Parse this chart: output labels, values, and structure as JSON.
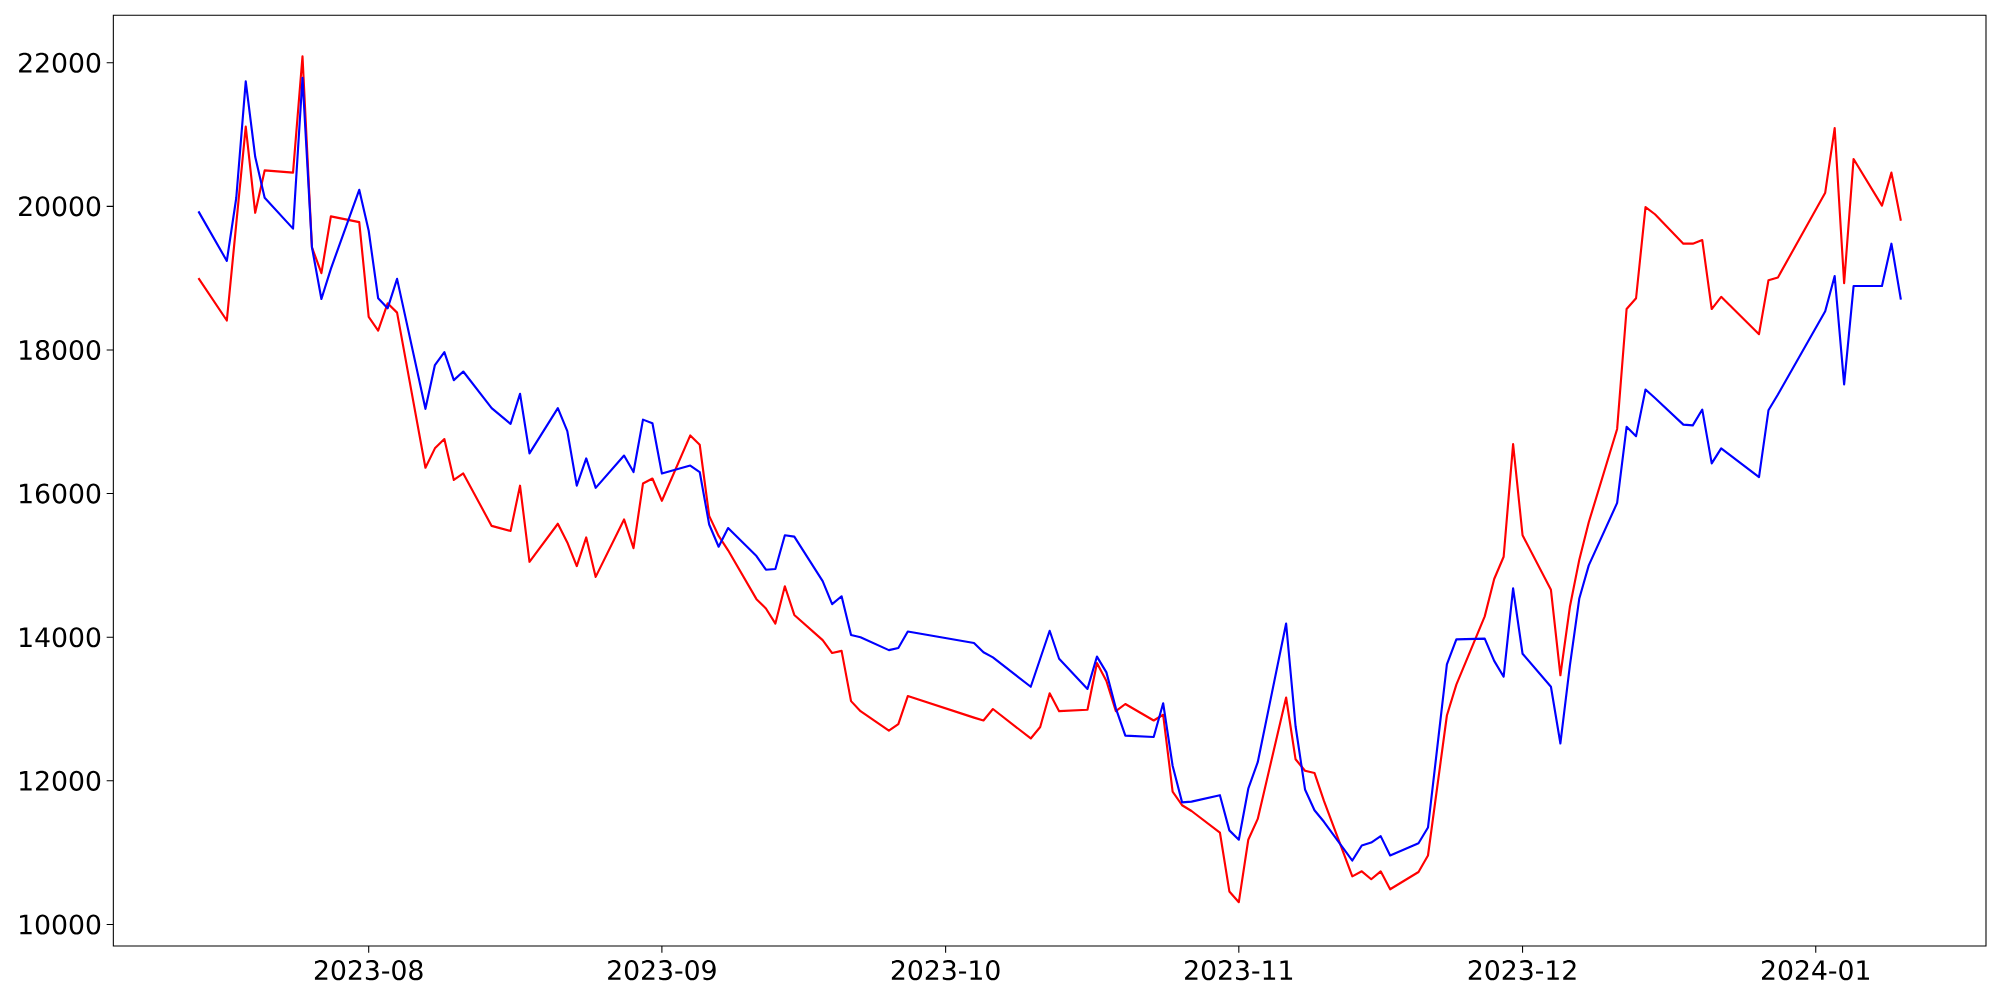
{
  "chart_data": {
    "type": "line",
    "x": [
      "2023-07-14",
      "2023-07-17",
      "2023-07-18",
      "2023-07-19",
      "2023-07-20",
      "2023-07-21",
      "2023-07-24",
      "2023-07-25",
      "2023-07-26",
      "2023-07-27",
      "2023-07-28",
      "2023-07-31",
      "2023-08-01",
      "2023-08-02",
      "2023-08-03",
      "2023-08-04",
      "2023-08-07",
      "2023-08-08",
      "2023-08-09",
      "2023-08-10",
      "2023-08-11",
      "2023-08-14",
      "2023-08-16",
      "2023-08-17",
      "2023-08-18",
      "2023-08-21",
      "2023-08-22",
      "2023-08-23",
      "2023-08-24",
      "2023-08-25",
      "2023-08-28",
      "2023-08-29",
      "2023-08-30",
      "2023-08-31",
      "2023-09-01",
      "2023-09-04",
      "2023-09-05",
      "2023-09-06",
      "2023-09-07",
      "2023-09-08",
      "2023-09-11",
      "2023-09-12",
      "2023-09-13",
      "2023-09-14",
      "2023-09-15",
      "2023-09-18",
      "2023-09-19",
      "2023-09-20",
      "2023-09-21",
      "2023-09-22",
      "2023-09-25",
      "2023-09-26",
      "2023-09-27",
      "2023-10-04",
      "2023-10-05",
      "2023-10-06",
      "2023-10-10",
      "2023-10-11",
      "2023-10-12",
      "2023-10-13",
      "2023-10-16",
      "2023-10-17",
      "2023-10-18",
      "2023-10-19",
      "2023-10-20",
      "2023-10-23",
      "2023-10-24",
      "2023-10-25",
      "2023-10-26",
      "2023-10-27",
      "2023-10-30",
      "2023-10-31",
      "2023-11-01",
      "2023-11-02",
      "2023-11-03",
      "2023-11-06",
      "2023-11-07",
      "2023-11-08",
      "2023-11-09",
      "2023-11-10",
      "2023-11-13",
      "2023-11-14",
      "2023-11-15",
      "2023-11-16",
      "2023-11-17",
      "2023-11-20",
      "2023-11-21",
      "2023-11-23",
      "2023-11-24",
      "2023-11-27",
      "2023-11-28",
      "2023-11-29",
      "2023-11-30",
      "2023-12-01",
      "2023-12-04",
      "2023-12-05",
      "2023-12-06",
      "2023-12-07",
      "2023-12-08",
      "2023-12-11",
      "2023-12-12",
      "2023-12-13",
      "2023-12-14",
      "2023-12-15",
      "2023-12-18",
      "2023-12-19",
      "2023-12-20",
      "2023-12-21",
      "2023-12-22",
      "2023-12-26",
      "2023-12-27",
      "2023-12-28",
      "2024-01-02",
      "2024-01-03",
      "2024-01-04",
      "2024-01-05",
      "2024-01-08",
      "2024-01-09",
      "2024-01-10"
    ],
    "series": [
      {
        "color": "#ff0000",
        "values": [
          19000,
          18410,
          19760,
          21110,
          19910,
          20500,
          20470,
          22090,
          19430,
          19070,
          19860,
          19780,
          18460,
          18270,
          18650,
          18520,
          16360,
          16630,
          16760,
          16190,
          16280,
          15550,
          15480,
          16110,
          15050,
          15580,
          15320,
          14990,
          15390,
          14840,
          15640,
          15240,
          16140,
          16210,
          15900,
          16810,
          16680,
          15690,
          15410,
          15210,
          14530,
          14400,
          14190,
          14710,
          14310,
          13960,
          13780,
          13810,
          13110,
          12970,
          12700,
          12790,
          13180,
          12880,
          12840,
          13000,
          12590,
          12750,
          13220,
          12970,
          12990,
          13640,
          13390,
          12970,
          13070,
          12840,
          12920,
          11850,
          11660,
          11580,
          11280,
          10460,
          10310,
          11180,
          11470,
          13160,
          12300,
          12140,
          12110,
          11720,
          10670,
          10740,
          10630,
          10740,
          10490,
          10730,
          10960,
          12910,
          13340,
          14290,
          14810,
          15120,
          16690,
          15420,
          14660,
          13470,
          14420,
          15080,
          15600,
          16900,
          18570,
          18720,
          19990,
          19890,
          19480,
          19480,
          19530,
          18570,
          18740,
          18220,
          18970,
          19010,
          20190,
          21090,
          18930,
          20660,
          20010,
          20470,
          19800
        ]
      },
      {
        "color": "#0000ff",
        "values": [
          19930,
          19240,
          20120,
          21740,
          20690,
          20120,
          19690,
          21790,
          19430,
          18710,
          19130,
          20230,
          19660,
          18720,
          18580,
          18990,
          17180,
          17790,
          17970,
          17580,
          17700,
          17190,
          16970,
          17390,
          16560,
          17190,
          16870,
          16110,
          16490,
          16080,
          16530,
          16300,
          17030,
          16980,
          16280,
          16390,
          16300,
          15570,
          15260,
          15520,
          15130,
          14940,
          14950,
          15420,
          15400,
          14780,
          14460,
          14570,
          14030,
          14000,
          13820,
          13850,
          14080,
          13920,
          13790,
          13720,
          13310,
          13700,
          14090,
          13700,
          13280,
          13730,
          13510,
          13010,
          12630,
          12610,
          13080,
          12210,
          11700,
          11710,
          11800,
          11310,
          11180,
          11890,
          12260,
          14190,
          12760,
          11880,
          11590,
          11430,
          10890,
          11100,
          11140,
          11230,
          10960,
          11130,
          11350,
          13620,
          13970,
          13980,
          13670,
          13450,
          14680,
          13770,
          13310,
          12520,
          13600,
          14540,
          15000,
          15870,
          16930,
          16800,
          17450,
          17330,
          16960,
          16950,
          17170,
          16420,
          16630,
          16230,
          17160,
          17380,
          18540,
          19030,
          17520,
          18890,
          18890,
          19480,
          18700
        ]
      }
    ],
    "xlim": [
      "2023-07-05",
      "2024-01-19"
    ],
    "xticks": [
      {
        "value": "2023-08-01",
        "label": "2023-08"
      },
      {
        "value": "2023-09-01",
        "label": "2023-09"
      },
      {
        "value": "2023-10-01",
        "label": "2023-10"
      },
      {
        "value": "2023-11-01",
        "label": "2023-11"
      },
      {
        "value": "2023-12-01",
        "label": "2023-12"
      },
      {
        "value": "2024-01-01",
        "label": "2024-01"
      }
    ],
    "ylim": [
      9700,
      22660
    ],
    "yticks": [
      10000,
      12000,
      14000,
      16000,
      18000,
      20000,
      22000
    ],
    "grid": false,
    "marker": "none",
    "line_style": "solid"
  }
}
